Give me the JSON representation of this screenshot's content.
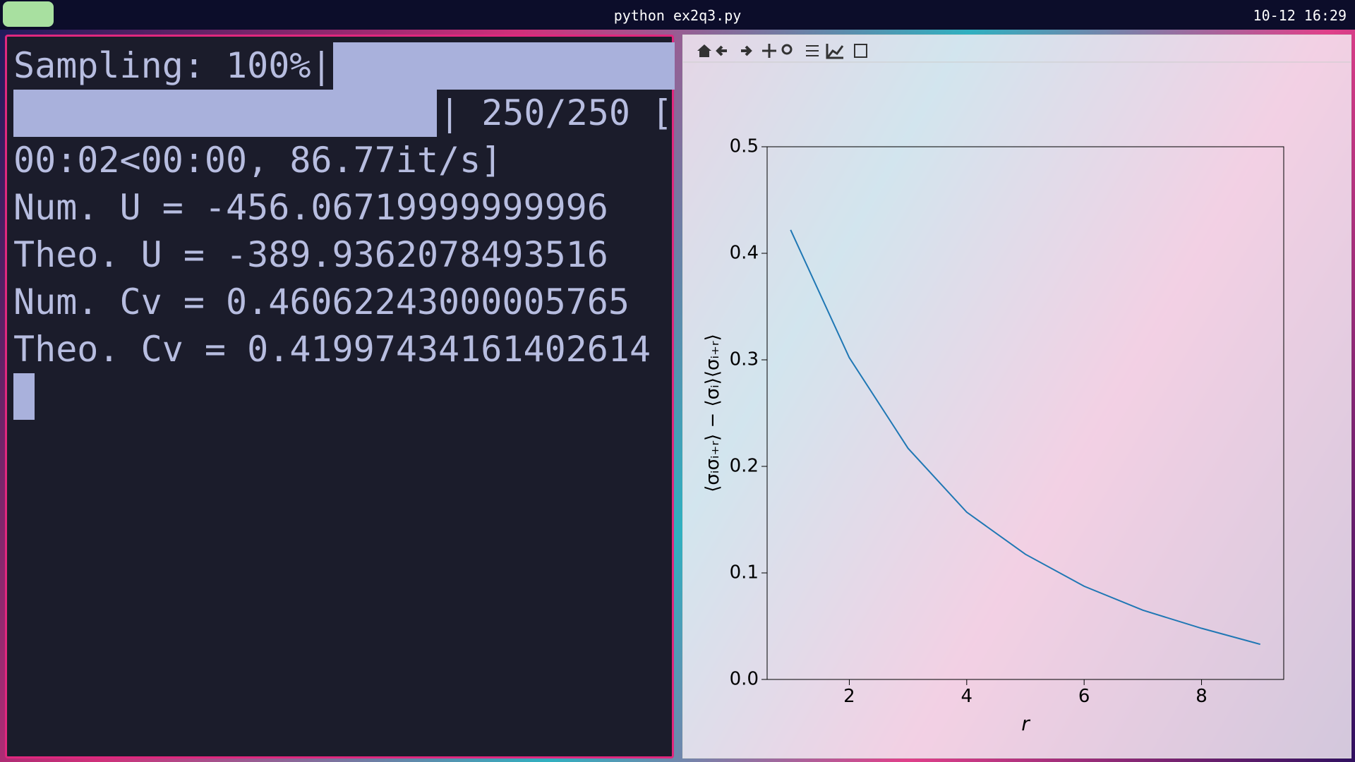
{
  "topbar": {
    "title": "python ex2q3.py",
    "clock": "10-12 16:29"
  },
  "terminal": {
    "lines": [
      "Sampling: 100%|",
      "| 250/250 [",
      "00:02<00:00, 86.77it/s]",
      "Num. U = -456.06719999999996",
      "Theo. U = -389.9362078493516",
      "Num. Cv = 0.46062243000005765",
      "Theo. Cv = 0.41997434161402614"
    ]
  },
  "chart_data": {
    "type": "line",
    "x": [
      1,
      2,
      3,
      4,
      5,
      6,
      7,
      8,
      9
    ],
    "values": [
      0.422,
      0.302,
      0.217,
      0.157,
      0.1175,
      0.0875,
      0.065,
      0.048,
      0.033
    ],
    "color": "#1f77b4",
    "xlabel": "r",
    "ylabel": "⟨σᵢσᵢ₊ᵣ⟩ − ⟨σᵢ⟩⟨σᵢ₊ᵣ⟩",
    "xlim": [
      0.6,
      9.4
    ],
    "ylim": [
      0,
      0.5
    ],
    "xticks": [
      2,
      4,
      6,
      8
    ],
    "yticks": [
      {
        "value": 0,
        "label": "0.0"
      },
      0.1,
      0.2,
      0.3,
      0.4,
      0.5
    ]
  }
}
